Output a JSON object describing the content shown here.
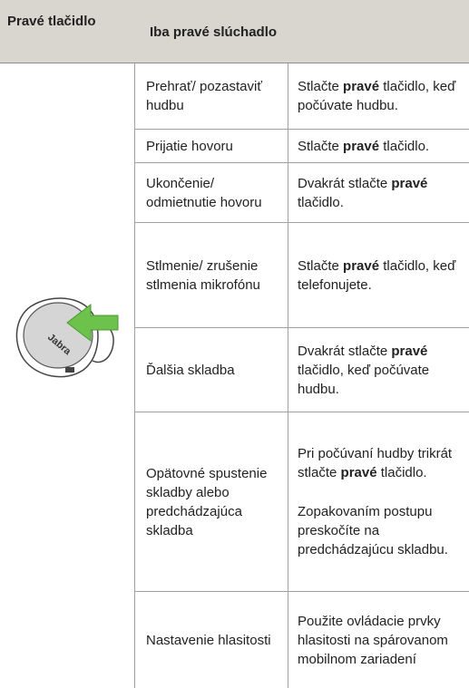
{
  "header": {
    "col1": "Pravé tlačidlo",
    "col2": "Iba pravé slúchadlo"
  },
  "image": {
    "label": "Jabra"
  },
  "rows": [
    {
      "action": "Prehrať/ pozastaviť hudbu",
      "description": [
        {
          "before": "Stlačte ",
          "bold": "pravé",
          "after": " tlačidlo, keď počúvate hudbu."
        }
      ]
    },
    {
      "action": "Prijatie hovoru",
      "description": [
        {
          "before": "Stlačte ",
          "bold": "pravé",
          "after": " tlačidlo."
        }
      ]
    },
    {
      "action": "Ukončenie/ odmietnutie hovoru",
      "description": [
        {
          "before": "Dvakrát stlačte ",
          "bold": "pravé",
          "after": " tlačidlo."
        }
      ]
    },
    {
      "action": "Stlmenie/ zrušenie stlmenia mikrofónu",
      "description": [
        {
          "before": "Stlačte ",
          "bold": "pravé",
          "after": " tlačidlo, keď telefonujete."
        }
      ]
    },
    {
      "action": "Ďalšia skladba",
      "description": [
        {
          "before": "Dvakrát stlačte ",
          "bold": "pravé",
          "after": " tlačidlo, keď počúvate hudbu."
        }
      ]
    },
    {
      "action": "Opätovné spustenie skladby alebo predchádzajúca skladba",
      "description": [
        {
          "before": "Pri počúvaní hudby trikrát stlačte ",
          "bold": "pravé",
          "after": " tlačidlo."
        },
        {
          "before": "Zopakovaním postupu preskočíte na predchádzajúcu skladbu."
        }
      ]
    },
    {
      "action": "Nastavenie hlasitosti",
      "description": [
        {
          "before": "Použite ovládacie prvky hlasitosti na spárovanom mobilnom zariadení"
        }
      ]
    }
  ]
}
